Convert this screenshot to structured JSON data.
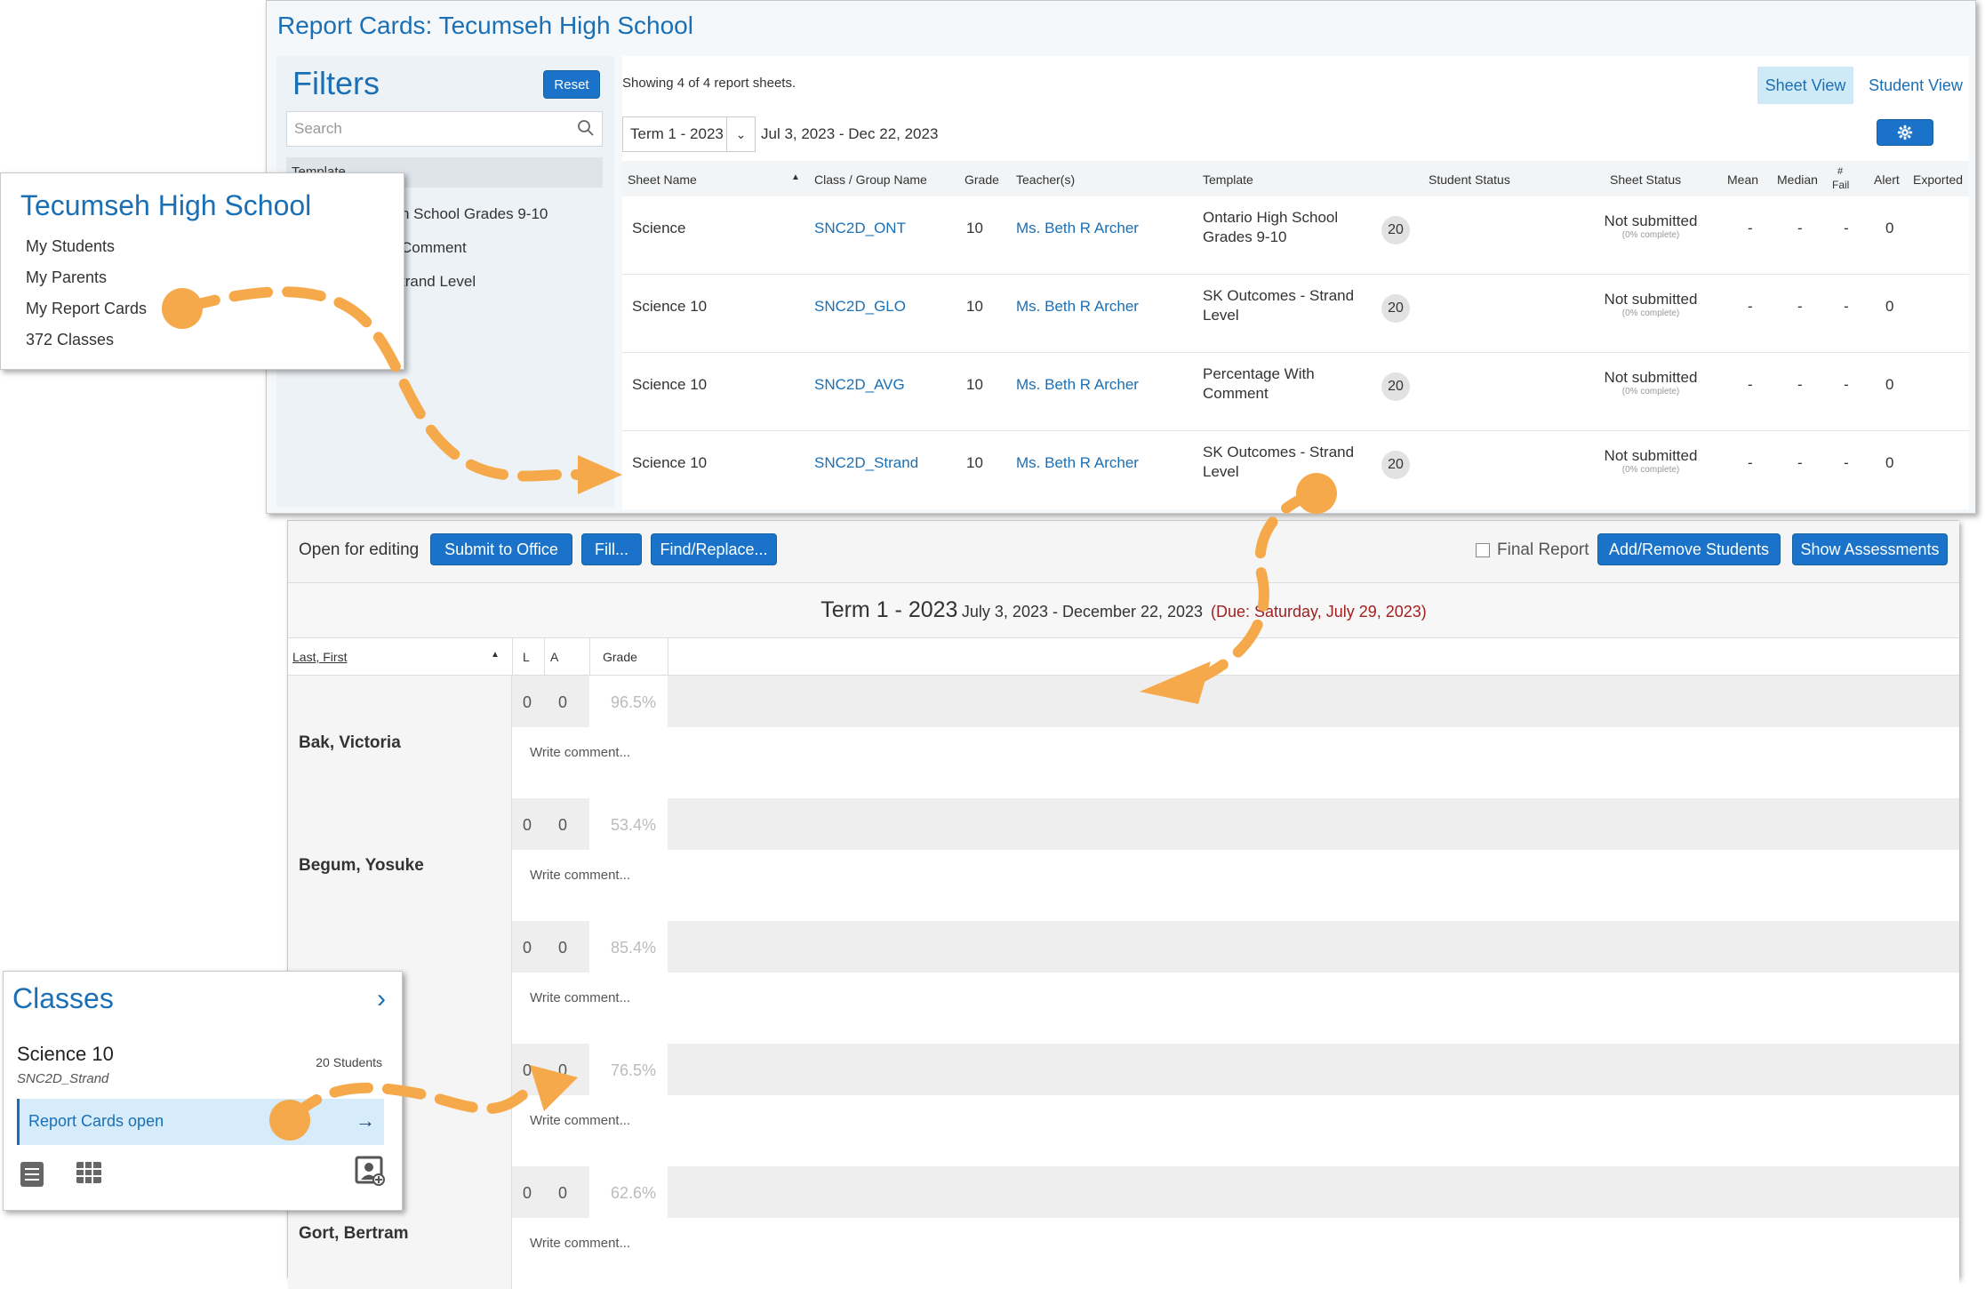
{
  "report_cards": {
    "title": "Report Cards: Tecumseh High School",
    "filters": {
      "title": "Filters",
      "reset": "Reset",
      "search_placeholder": "Search",
      "template_header": "Template",
      "options": [
        "n School Grades 9-10",
        "Comment",
        "trand Level"
      ]
    },
    "showing": "Showing 4 of 4 report sheets.",
    "view_tabs": {
      "sheet": "Sheet View",
      "student": "Student View"
    },
    "term": "Term 1 - 2023",
    "date_range": "Jul 3, 2023 - Dec 22, 2023",
    "columns": {
      "sheet_name": "Sheet Name",
      "class": "Class / Group Name",
      "grade": "Grade",
      "teacher": "Teacher(s)",
      "template": "Template",
      "student_status": "Student Status",
      "sheet_status": "Sheet Status",
      "mean": "Mean",
      "median": "Median",
      "fail_hash": "#",
      "fail": "Fail",
      "alert": "Alert",
      "exported": "Exported"
    },
    "rows": [
      {
        "sheet": "Science",
        "class": "SNC2D_ONT",
        "grade": "10",
        "teacher": "Ms. Beth R Archer",
        "template1": "Ontario High School",
        "template2": "Grades 9-10",
        "count": "20",
        "status": "Not submitted",
        "pct": "(0% complete)",
        "mean": "-",
        "median": "-",
        "fail": "-",
        "alert": "0"
      },
      {
        "sheet": "Science 10",
        "class": "SNC2D_GLO",
        "grade": "10",
        "teacher": "Ms. Beth R Archer",
        "template1": "SK Outcomes - Strand",
        "template2": "Level",
        "count": "20",
        "status": "Not submitted",
        "pct": "(0% complete)",
        "mean": "-",
        "median": "-",
        "fail": "-",
        "alert": "0"
      },
      {
        "sheet": "Science 10",
        "class": "SNC2D_AVG",
        "grade": "10",
        "teacher": "Ms. Beth R Archer",
        "template1": "Percentage With",
        "template2": "Comment",
        "count": "20",
        "status": "Not submitted",
        "pct": "(0% complete)",
        "mean": "-",
        "median": "-",
        "fail": "-",
        "alert": "0"
      },
      {
        "sheet": "Science 10",
        "class": "SNC2D_Strand",
        "grade": "10",
        "teacher": "Ms. Beth R Archer",
        "template1": "SK Outcomes - Strand",
        "template2": "Level",
        "count": "20",
        "status": "Not submitted",
        "pct": "(0% complete)",
        "mean": "-",
        "median": "-",
        "fail": "-",
        "alert": "0"
      }
    ]
  },
  "school_nav": {
    "name": "Tecumseh High School",
    "items": [
      "My Students",
      "My Parents",
      "My Report Cards",
      "372 Classes"
    ]
  },
  "editor": {
    "open_label": "Open for editing",
    "buttons": {
      "submit": "Submit to Office",
      "fill": "Fill...",
      "find": "Find/Replace...",
      "add_remove": "Add/Remove Students",
      "show_assess": "Show Assessments"
    },
    "final_report": "Final Report",
    "term_title": "Term 1 - 2023",
    "term_dates": "July 3, 2023 - December 22, 2023",
    "due": "(Due: Saturday, July 29, 2023)",
    "columns": {
      "name": "Last, First",
      "l": "L",
      "a": "A",
      "grade": "Grade"
    },
    "comment_placeholder": "Write comment...",
    "students": [
      {
        "name": "Bak, Victoria",
        "l": "0",
        "a": "0",
        "grade": "96.5%"
      },
      {
        "name": "Begum, Yosuke",
        "l": "0",
        "a": "0",
        "grade": "53.4%"
      },
      {
        "name": "",
        "l": "0",
        "a": "0",
        "grade": "85.4%"
      },
      {
        "name": "",
        "l": "0",
        "a": "0",
        "grade": "76.5%"
      },
      {
        "name": "Gort, Bertram",
        "l": "0",
        "a": "0",
        "grade": "62.6%"
      }
    ]
  },
  "classes_card": {
    "title": "Classes",
    "class_name": "Science 10",
    "class_code": "SNC2D_Strand",
    "student_count": "20 Students",
    "report_cards_open": "Report Cards open"
  },
  "colors": {
    "accent": "#1a73c8",
    "annotation": "#f5a94a",
    "due": "#a02020"
  }
}
